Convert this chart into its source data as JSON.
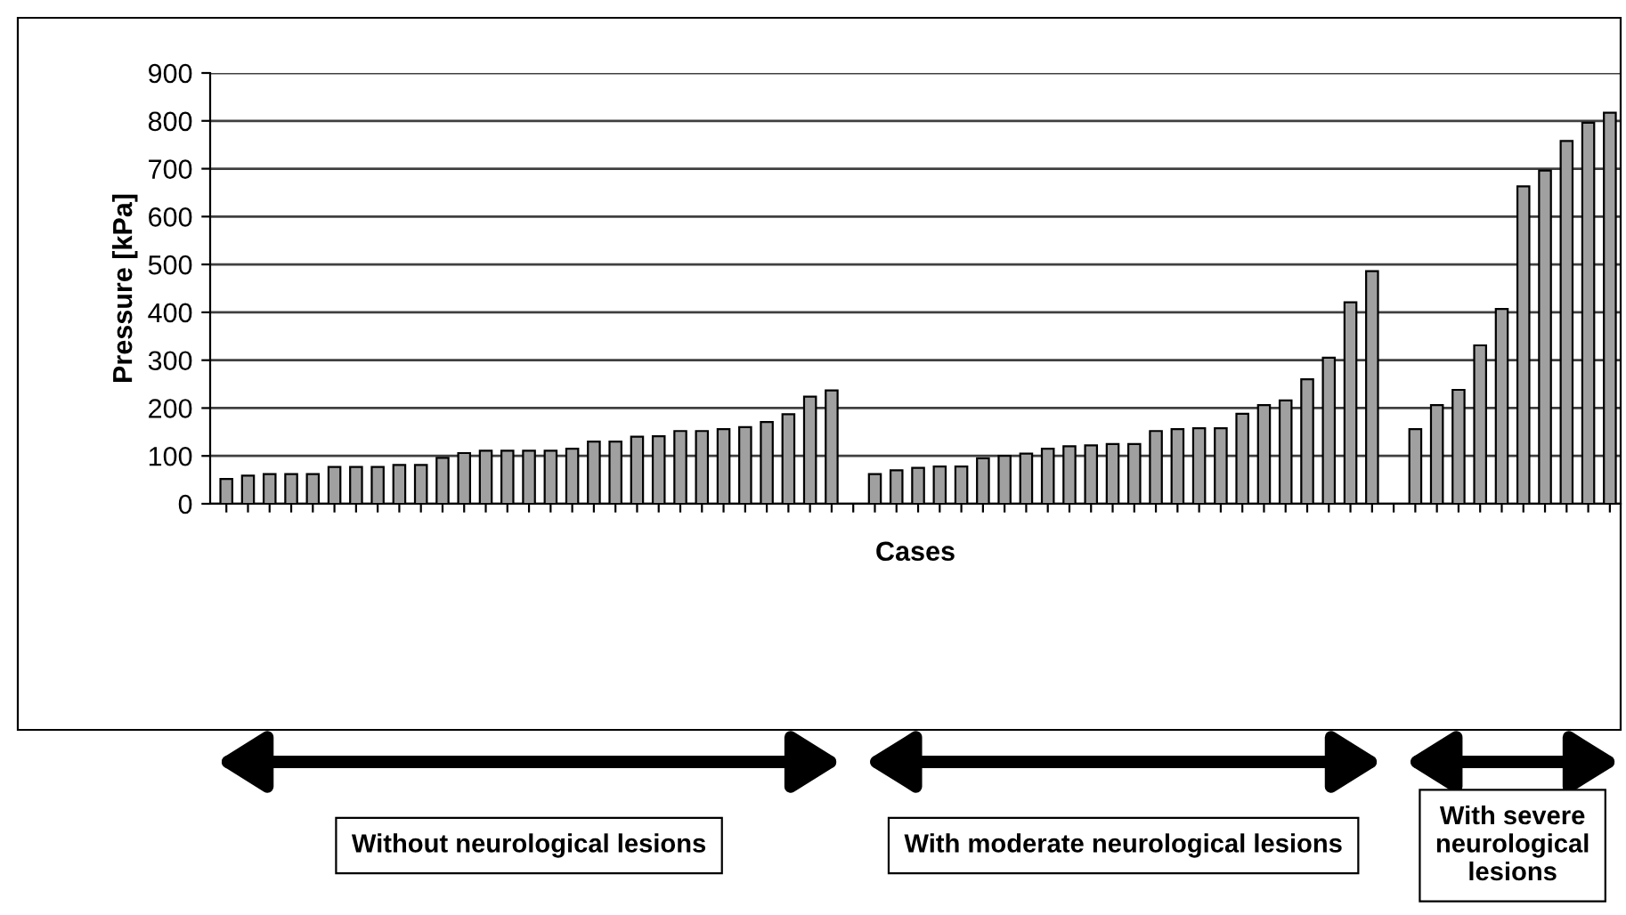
{
  "chart_data": {
    "type": "bar",
    "xlabel": "Cases",
    "ylabel": "Pressure [kPa]",
    "categories": [
      null,
      null,
      null,
      null,
      null,
      null,
      null,
      null,
      null,
      null,
      null,
      null,
      null,
      null,
      null,
      null,
      null,
      null,
      null,
      null,
      null,
      null,
      null,
      null,
      null,
      null,
      null,
      null,
      null,
      null,
      null,
      null,
      null,
      null,
      null,
      null,
      null,
      null,
      null,
      null,
      null,
      null,
      null,
      null,
      null,
      null,
      null,
      null,
      null,
      null,
      null,
      null,
      null,
      null,
      null,
      null,
      null,
      null,
      null,
      null,
      null,
      null,
      null,
      null,
      null
    ],
    "series": [
      {
        "color": "#a0a0a0",
        "values": [
          52,
          59,
          62,
          62,
          62,
          77,
          77,
          77,
          81,
          81,
          96,
          106,
          111,
          111,
          111,
          111,
          115,
          130,
          130,
          140,
          141,
          152,
          152,
          156,
          160,
          171,
          187,
          224,
          237,
          null,
          62,
          70,
          75,
          78,
          78,
          95,
          100,
          105,
          115,
          120,
          122,
          125,
          125,
          152,
          156,
          158,
          158,
          188,
          206,
          216,
          260,
          305,
          421,
          486,
          null,
          156,
          206,
          238,
          331,
          407,
          663,
          696,
          758,
          796,
          817
        ]
      }
    ],
    "ylim": [
      0,
      900
    ],
    "yticks": [
      0,
      100,
      200,
      300,
      400,
      500,
      600,
      700,
      800,
      900
    ],
    "grid": "y",
    "legend": false,
    "annotations": [
      "Without neurological lesions",
      "With moderate neurological lesions",
      "With severe neurological lesions"
    ]
  }
}
